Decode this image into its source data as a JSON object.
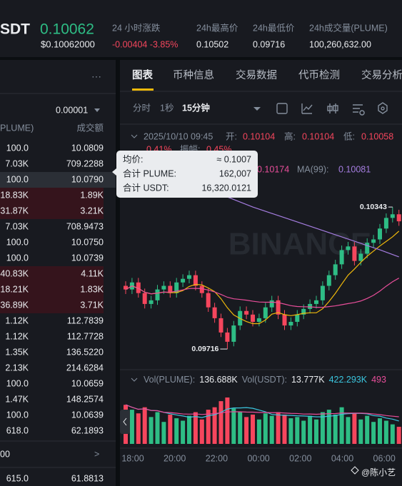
{
  "header": {
    "pair_fragment": "SDT",
    "price": "0.10062",
    "price_usd": "$0.10062000",
    "stats": [
      {
        "label": "24 小时涨跌",
        "value": "-0.00404 -3.85%"
      },
      {
        "label": "24h最高价",
        "value": "0.10502"
      },
      {
        "label": "24h最低价",
        "value": "0.09716"
      },
      {
        "label": "24h成交量(PLUME)",
        "value": "100,260,632.00"
      }
    ]
  },
  "orderbook": {
    "menu": "···",
    "precision": "0.00001",
    "columns": [
      "PLUME)",
      "成交额"
    ],
    "rows": [
      [
        "100.0",
        "10.0809"
      ],
      [
        "7.03K",
        "709.2288"
      ],
      [
        "100.0",
        "10.0790"
      ],
      [
        "18.83K",
        "1.89K"
      ],
      [
        "31.87K",
        "3.21K"
      ],
      [
        "7.03K",
        "708.9473"
      ],
      [
        "100.0",
        "10.0750"
      ],
      [
        "100.0",
        "10.0739"
      ],
      [
        "40.83K",
        "4.11K"
      ],
      [
        "18.21K",
        "1.83K"
      ],
      [
        "36.89K",
        "3.71K"
      ],
      [
        "1.12K",
        "112.7839"
      ],
      [
        "1.12K",
        "112.7728"
      ],
      [
        "1.35K",
        "136.5220"
      ],
      [
        "2.13K",
        "214.6284"
      ],
      [
        "100.0",
        "10.0659"
      ],
      [
        "1.47K",
        "148.2574"
      ],
      [
        "100.0",
        "10.0639"
      ],
      [
        "618.0",
        "62.1893"
      ]
    ],
    "footer_label": "00",
    "footer_arrow": ">",
    "last_row": [
      "615.0",
      "61.8813"
    ]
  },
  "tabs": [
    "图表",
    "币种信息",
    "交易数据",
    "代币检测",
    "交易分析"
  ],
  "toolbar": {
    "intervals": [
      "分时",
      "1秒",
      "15分钟"
    ]
  },
  "chart": {
    "info": {
      "time": "2025/10/10 09:45",
      "open_label": "开:",
      "open": "0.10104",
      "high_label": "高:",
      "high": "0.10104",
      "low_label": "低:",
      "low": "0.10058",
      "change": "0.41%",
      "amplitude_label": "振幅:",
      "amplitude": "0.45%"
    },
    "ma": {
      "ma25_value": "0.10174",
      "ma99_label": "MA(99):",
      "ma99_value": "0.10081"
    },
    "tooltip": [
      {
        "label": "均价:",
        "value": "≈ 0.1007"
      },
      {
        "label": "合计 PLUME:",
        "value": "162,007"
      },
      {
        "label": "合计 USDT:",
        "value": "16,320.0121"
      }
    ],
    "watermark": "BINANCE",
    "price_max_label": "0.10343",
    "price_min_label": "0.09716",
    "ylim": [
      0.0965,
      0.1069
    ],
    "candles": {
      "open": [
        0.09995,
        0.09979,
        0.1001,
        0.09963,
        0.09915,
        0.09931,
        0.09979,
        0.09995,
        0.09963,
        0.1001,
        0.10026,
        0.10042,
        0.09995,
        0.09963,
        0.099,
        0.09852,
        0.09789,
        0.09748,
        0.0982,
        0.09884,
        0.09868,
        0.09836,
        0.09852,
        0.099,
        0.09931,
        0.09868,
        0.0982,
        0.09836,
        0.09868,
        0.09893,
        0.09915,
        0.09931,
        0.09995,
        0.10042,
        0.1009,
        0.10153,
        0.10169,
        0.10105,
        0.10137,
        0.10185,
        0.102,
        0.10248,
        0.10295,
        0.10311
      ],
      "high": [
        0.10015,
        0.1003,
        0.1003,
        0.09983,
        0.09951,
        0.09999,
        0.10015,
        0.10015,
        0.1003,
        0.10046,
        0.10062,
        0.10062,
        0.10015,
        0.09983,
        0.0992,
        0.09872,
        0.09809,
        0.0984,
        0.09904,
        0.09904,
        0.09888,
        0.09872,
        0.0992,
        0.09951,
        0.09951,
        0.09888,
        0.09856,
        0.09888,
        0.09913,
        0.09935,
        0.09951,
        0.10015,
        0.10062,
        0.1011,
        0.10173,
        0.10189,
        0.10189,
        0.10157,
        0.10205,
        0.1022,
        0.10268,
        0.10315,
        0.10343,
        0.10331
      ],
      "low": [
        0.09959,
        0.09959,
        0.09943,
        0.09895,
        0.09895,
        0.09911,
        0.09959,
        0.09943,
        0.09943,
        0.0999,
        0.10006,
        0.09975,
        0.09943,
        0.0988,
        0.09832,
        0.09769,
        0.09716,
        0.09728,
        0.098,
        0.09848,
        0.09816,
        0.09816,
        0.09832,
        0.0988,
        0.09848,
        0.098,
        0.098,
        0.09816,
        0.09848,
        0.09873,
        0.09895,
        0.09911,
        0.09975,
        0.10022,
        0.1007,
        0.10133,
        0.10085,
        0.10085,
        0.10117,
        0.10165,
        0.1018,
        0.10228,
        0.10275,
        0.1026
      ],
      "close": [
        0.09979,
        0.1001,
        0.09963,
        0.09915,
        0.09931,
        0.09979,
        0.09995,
        0.09963,
        0.1001,
        0.10026,
        0.10042,
        0.09995,
        0.09963,
        0.099,
        0.09852,
        0.09789,
        0.09748,
        0.0982,
        0.09884,
        0.09868,
        0.09836,
        0.09852,
        0.099,
        0.09931,
        0.09868,
        0.0982,
        0.09836,
        0.09868,
        0.09893,
        0.09915,
        0.09931,
        0.09995,
        0.10042,
        0.1009,
        0.10153,
        0.10169,
        0.10105,
        0.10137,
        0.10185,
        0.102,
        0.10248,
        0.10295,
        0.10311,
        0.1028
      ]
    },
    "ma99": {
      "index": [
        0,
        10,
        20,
        30,
        40,
        43
      ],
      "values": [
        0.10548,
        0.10454,
        0.10343,
        0.10249,
        0.10154,
        0.10123
      ]
    },
    "volume": {
      "ylim": [
        0,
        450
      ],
      "values": [
        320,
        280,
        250,
        300,
        220,
        260,
        180,
        240,
        210,
        190,
        230,
        260,
        200,
        280,
        300,
        350,
        380,
        290,
        260,
        220,
        240,
        200,
        250,
        230,
        260,
        240,
        210,
        220,
        190,
        230,
        200,
        260,
        280,
        240,
        300,
        220,
        250,
        200,
        230,
        180,
        210,
        190,
        160,
        140
      ]
    },
    "vol_legend": [
      {
        "text": "Vol(PLUME):",
        "color": "#848e9c"
      },
      {
        "text": "136.688K",
        "color": "#eaecef"
      },
      {
        "text": "Vol(USDT):",
        "color": "#848e9c"
      },
      {
        "text": "13.777K",
        "color": "#eaecef"
      },
      {
        "text": "422.293K",
        "color": "#3bc6df"
      },
      {
        "text": "493",
        "color": "#e84e9a"
      }
    ],
    "time_ticks": [
      "18:00",
      "20:00",
      "22:00",
      "00:00",
      "02:00",
      "04:00",
      "06:00"
    ]
  },
  "footer": {
    "watermark": "@陈小艺"
  }
}
